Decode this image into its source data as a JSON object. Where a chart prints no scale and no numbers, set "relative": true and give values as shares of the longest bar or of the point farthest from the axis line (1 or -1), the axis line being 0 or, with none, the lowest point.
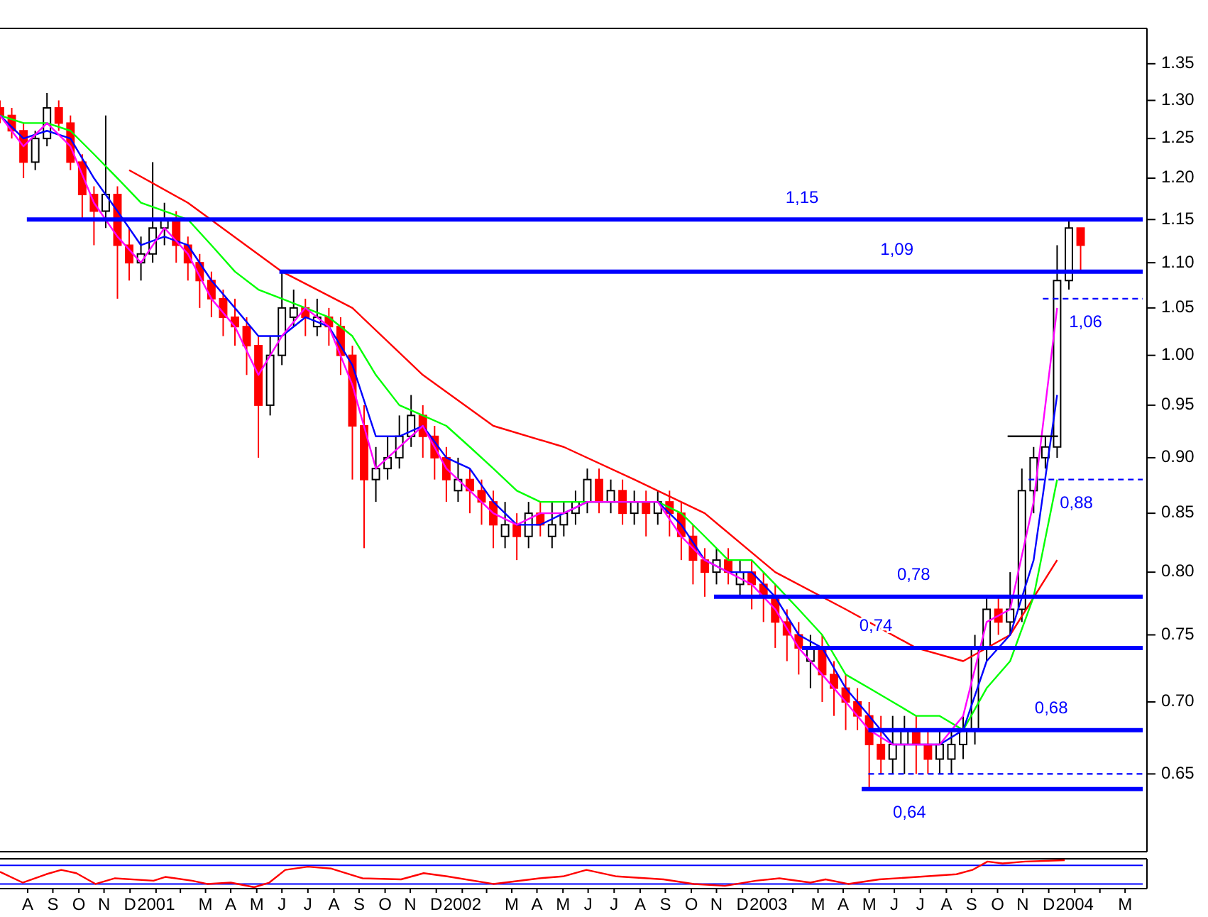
{
  "chart_data": [
    {
      "type": "candlestick",
      "log": true,
      "ylim": [
        0.6,
        1.4
      ],
      "xlim": [
        "2000-07-14",
        "2004-04-06"
      ],
      "tick_labels": "y",
      "yticks": [
        {
          "value": 0.65,
          "label": "0.65"
        },
        {
          "value": 0.7,
          "label": "0.70"
        },
        {
          "value": 0.75,
          "label": "0.75"
        },
        {
          "value": 0.8,
          "label": "0.80"
        },
        {
          "value": 0.85,
          "label": "0.85"
        },
        {
          "value": 0.9,
          "label": "0.90"
        },
        {
          "value": 0.95,
          "label": "0.95"
        },
        {
          "value": 1,
          "label": "1.00"
        },
        {
          "value": 1.05,
          "label": "1.05"
        },
        {
          "value": 1.1,
          "label": "1.10"
        },
        {
          "value": 1.15,
          "label": "1.15"
        },
        {
          "value": 1.2,
          "label": "1.20"
        },
        {
          "value": 1.25,
          "label": "1.25"
        },
        {
          "value": 1.3,
          "label": "1.30"
        },
        {
          "value": 1.35,
          "label": "1.35"
        }
      ],
      "x": [
        "2000-07-14",
        "2000-07-28",
        "2000-08-11",
        "2000-08-25",
        "2000-09-08",
        "2000-09-22",
        "2000-10-06",
        "2000-10-20",
        "2000-11-03",
        "2000-11-17",
        "2000-12-01",
        "2000-12-15",
        "2000-12-29",
        "2001-01-12",
        "2001-01-26",
        "2001-02-09",
        "2001-02-23",
        "2001-03-09",
        "2001-03-23",
        "2001-04-06",
        "2001-04-20",
        "2001-05-04",
        "2001-05-18",
        "2001-06-01",
        "2001-06-15",
        "2001-06-29",
        "2001-07-13",
        "2001-07-27",
        "2001-08-10",
        "2001-08-24",
        "2001-09-07",
        "2001-09-21",
        "2001-10-05",
        "2001-10-19",
        "2001-11-02",
        "2001-11-16",
        "2001-11-30",
        "2001-12-14",
        "2001-12-28",
        "2002-01-11",
        "2002-01-25",
        "2002-02-08",
        "2002-02-22",
        "2002-03-08",
        "2002-03-22",
        "2002-04-05",
        "2002-04-19",
        "2002-05-03",
        "2002-05-17",
        "2002-05-31",
        "2002-06-14",
        "2002-06-28",
        "2002-07-12",
        "2002-07-26",
        "2002-08-09",
        "2002-08-23",
        "2002-09-06",
        "2002-09-20",
        "2002-10-04",
        "2002-10-18",
        "2002-11-01",
        "2002-11-15",
        "2002-11-29",
        "2002-12-13",
        "2002-12-27",
        "2003-01-10",
        "2003-01-24",
        "2003-02-07",
        "2003-02-21",
        "2003-03-07",
        "2003-03-21",
        "2003-04-04",
        "2003-04-18",
        "2003-05-02",
        "2003-05-16",
        "2003-05-30",
        "2003-06-13",
        "2003-06-27",
        "2003-07-11",
        "2003-07-25",
        "2003-08-08",
        "2003-08-22",
        "2003-09-05",
        "2003-09-19",
        "2003-10-03",
        "2003-10-17",
        "2003-10-31",
        "2003-11-14",
        "2003-11-28",
        "2003-12-12",
        "2003-12-26",
        "2004-01-09",
        "2004-01-23"
      ],
      "ohlc": [
        [
          1.29,
          1.3,
          1.27,
          1.28
        ],
        [
          1.28,
          1.29,
          1.25,
          1.26
        ],
        [
          1.26,
          1.27,
          1.2,
          1.22
        ],
        [
          1.22,
          1.26,
          1.21,
          1.25
        ],
        [
          1.25,
          1.31,
          1.24,
          1.29
        ],
        [
          1.29,
          1.3,
          1.26,
          1.27
        ],
        [
          1.27,
          1.28,
          1.21,
          1.22
        ],
        [
          1.22,
          1.23,
          1.15,
          1.18
        ],
        [
          1.18,
          1.19,
          1.12,
          1.16
        ],
        [
          1.16,
          1.28,
          1.14,
          1.18
        ],
        [
          1.18,
          1.19,
          1.06,
          1.12
        ],
        [
          1.12,
          1.14,
          1.08,
          1.1
        ],
        [
          1.1,
          1.13,
          1.08,
          1.11
        ],
        [
          1.11,
          1.22,
          1.1,
          1.14
        ],
        [
          1.14,
          1.17,
          1.12,
          1.15
        ],
        [
          1.15,
          1.16,
          1.1,
          1.12
        ],
        [
          1.12,
          1.13,
          1.08,
          1.1
        ],
        [
          1.1,
          1.11,
          1.05,
          1.08
        ],
        [
          1.08,
          1.09,
          1.04,
          1.06
        ],
        [
          1.06,
          1.07,
          1.02,
          1.04
        ],
        [
          1.04,
          1.06,
          1.01,
          1.03
        ],
        [
          1.03,
          1.04,
          0.98,
          1.01
        ],
        [
          1.01,
          1.02,
          0.9,
          0.95
        ],
        [
          0.95,
          1.02,
          0.94,
          1.0
        ],
        [
          1.0,
          1.09,
          0.99,
          1.05
        ],
        [
          1.04,
          1.07,
          1.03,
          1.05
        ],
        [
          1.05,
          1.06,
          1.02,
          1.04
        ],
        [
          1.03,
          1.06,
          1.02,
          1.04
        ],
        [
          1.04,
          1.05,
          1.01,
          1.03
        ],
        [
          1.03,
          1.04,
          0.98,
          1.0
        ],
        [
          1.0,
          1.01,
          0.88,
          0.93
        ],
        [
          0.93,
          0.95,
          0.82,
          0.88
        ],
        [
          0.88,
          0.91,
          0.86,
          0.89
        ],
        [
          0.89,
          0.92,
          0.88,
          0.9
        ],
        [
          0.9,
          0.94,
          0.89,
          0.92
        ],
        [
          0.92,
          0.96,
          0.91,
          0.94
        ],
        [
          0.94,
          0.95,
          0.9,
          0.92
        ],
        [
          0.92,
          0.93,
          0.88,
          0.9
        ],
        [
          0.9,
          0.91,
          0.86,
          0.88
        ],
        [
          0.87,
          0.9,
          0.86,
          0.88
        ],
        [
          0.88,
          0.89,
          0.85,
          0.87
        ],
        [
          0.87,
          0.88,
          0.84,
          0.86
        ],
        [
          0.86,
          0.87,
          0.82,
          0.84
        ],
        [
          0.83,
          0.86,
          0.82,
          0.84
        ],
        [
          0.84,
          0.85,
          0.81,
          0.83
        ],
        [
          0.83,
          0.86,
          0.82,
          0.85
        ],
        [
          0.85,
          0.86,
          0.83,
          0.84
        ],
        [
          0.83,
          0.86,
          0.82,
          0.84
        ],
        [
          0.84,
          0.86,
          0.83,
          0.85
        ],
        [
          0.85,
          0.87,
          0.84,
          0.86
        ],
        [
          0.86,
          0.89,
          0.85,
          0.88
        ],
        [
          0.88,
          0.89,
          0.85,
          0.86
        ],
        [
          0.86,
          0.88,
          0.85,
          0.87
        ],
        [
          0.87,
          0.88,
          0.84,
          0.85
        ],
        [
          0.85,
          0.87,
          0.84,
          0.86
        ],
        [
          0.86,
          0.87,
          0.83,
          0.85
        ],
        [
          0.85,
          0.87,
          0.84,
          0.86
        ],
        [
          0.86,
          0.87,
          0.83,
          0.85
        ],
        [
          0.85,
          0.86,
          0.81,
          0.83
        ],
        [
          0.83,
          0.84,
          0.79,
          0.81
        ],
        [
          0.81,
          0.82,
          0.78,
          0.8
        ],
        [
          0.8,
          0.82,
          0.79,
          0.81
        ],
        [
          0.81,
          0.82,
          0.79,
          0.8
        ],
        [
          0.79,
          0.81,
          0.78,
          0.8
        ],
        [
          0.8,
          0.81,
          0.77,
          0.79
        ],
        [
          0.79,
          0.8,
          0.76,
          0.78
        ],
        [
          0.78,
          0.79,
          0.74,
          0.76
        ],
        [
          0.76,
          0.77,
          0.73,
          0.75
        ],
        [
          0.75,
          0.76,
          0.72,
          0.74
        ],
        [
          0.73,
          0.75,
          0.71,
          0.74
        ],
        [
          0.74,
          0.75,
          0.7,
          0.72
        ],
        [
          0.72,
          0.73,
          0.69,
          0.71
        ],
        [
          0.71,
          0.72,
          0.68,
          0.7
        ],
        [
          0.7,
          0.71,
          0.68,
          0.69
        ],
        [
          0.69,
          0.7,
          0.64,
          0.67
        ],
        [
          0.67,
          0.69,
          0.65,
          0.66
        ],
        [
          0.66,
          0.69,
          0.65,
          0.67
        ],
        [
          0.67,
          0.69,
          0.65,
          0.68
        ],
        [
          0.68,
          0.69,
          0.65,
          0.67
        ],
        [
          0.67,
          0.68,
          0.65,
          0.66
        ],
        [
          0.66,
          0.68,
          0.65,
          0.67
        ],
        [
          0.66,
          0.68,
          0.65,
          0.67
        ],
        [
          0.67,
          0.69,
          0.66,
          0.68
        ],
        [
          0.68,
          0.75,
          0.67,
          0.74
        ],
        [
          0.74,
          0.78,
          0.73,
          0.77
        ],
        [
          0.77,
          0.78,
          0.75,
          0.76
        ],
        [
          0.76,
          0.8,
          0.75,
          0.77
        ],
        [
          0.77,
          0.89,
          0.76,
          0.87
        ],
        [
          0.87,
          0.91,
          0.85,
          0.9
        ],
        [
          0.9,
          0.92,
          0.89,
          0.91
        ],
        [
          0.91,
          1.12,
          0.9,
          1.08
        ],
        [
          1.08,
          1.15,
          1.07,
          1.14
        ],
        [
          1.14,
          1.14,
          1.09,
          1.12
        ]
      ],
      "colors": [
        "#ff0000",
        "#ff0000",
        "#ff0000",
        "#000000",
        "#000000",
        "#ff0000",
        "#ff0000",
        "#ff0000",
        "#ff0000",
        "#000000",
        "#ff0000",
        "#ff0000",
        "#000000",
        "#000000",
        "#000000",
        "#ff0000",
        "#ff0000",
        "#ff0000",
        "#ff0000",
        "#ff0000",
        "#ff0000",
        "#ff0000",
        "#ff0000",
        "#000000",
        "#000000",
        "#000000",
        "#ff0000",
        "#000000",
        "#ff0000",
        "#ff0000",
        "#ff0000",
        "#ff0000",
        "#000000",
        "#000000",
        "#000000",
        "#000000",
        "#ff0000",
        "#ff0000",
        "#ff0000",
        "#000000",
        "#ff0000",
        "#ff0000",
        "#ff0000",
        "#000000",
        "#ff0000",
        "#000000",
        "#ff0000",
        "#000000",
        "#000000",
        "#000000",
        "#000000",
        "#ff0000",
        "#000000",
        "#ff0000",
        "#000000",
        "#ff0000",
        "#000000",
        "#ff0000",
        "#ff0000",
        "#ff0000",
        "#ff0000",
        "#000000",
        "#ff0000",
        "#000000",
        "#ff0000",
        "#ff0000",
        "#ff0000",
        "#ff0000",
        "#ff0000",
        "#000000",
        "#ff0000",
        "#ff0000",
        "#ff0000",
        "#ff0000",
        "#ff0000",
        "#ff0000",
        "#000000",
        "#000000",
        "#ff0000",
        "#ff0000",
        "#000000",
        "#000000",
        "#000000",
        "#000000",
        "#000000",
        "#ff0000",
        "#000000",
        "#000000",
        "#000000",
        "#000000",
        "#000000",
        "#000000",
        "#ff0000"
      ],
      "series": [
        {
          "type": "line",
          "color": "#ff0000",
          "x": [
            "2000-12-15",
            "2001-02-23",
            "2001-06-15",
            "2001-09-07",
            "2001-11-30",
            "2002-02-22",
            "2002-05-17",
            "2002-08-09",
            "2002-11-01",
            "2003-01-24",
            "2003-04-18",
            "2003-07-11",
            "2003-09-05",
            "2003-10-31",
            "2003-12-26"
          ],
          "values": [
            1.21,
            1.17,
            1.09,
            1.05,
            0.98,
            0.93,
            0.91,
            0.88,
            0.85,
            0.8,
            0.77,
            0.74,
            0.73,
            0.75,
            0.81
          ]
        },
        {
          "type": "line",
          "color": "#00ff00",
          "x": [
            "2000-07-14",
            "2000-08-11",
            "2000-09-08",
            "2000-10-06",
            "2000-11-03",
            "2000-12-01",
            "2000-12-29",
            "2001-01-26",
            "2001-02-23",
            "2001-03-23",
            "2001-04-20",
            "2001-05-18",
            "2001-06-15",
            "2001-07-13",
            "2001-08-10",
            "2001-09-07",
            "2001-10-05",
            "2001-11-02",
            "2001-11-30",
            "2001-12-28",
            "2002-01-25",
            "2002-02-22",
            "2002-03-22",
            "2002-04-19",
            "2002-05-17",
            "2002-06-14",
            "2002-07-12",
            "2002-08-09",
            "2002-09-06",
            "2002-10-04",
            "2002-11-01",
            "2002-11-29",
            "2002-12-27",
            "2003-01-24",
            "2003-02-21",
            "2003-03-21",
            "2003-04-18",
            "2003-05-16",
            "2003-06-13",
            "2003-07-11",
            "2003-08-08",
            "2003-09-05",
            "2003-10-03",
            "2003-10-31",
            "2003-11-28",
            "2003-12-26"
          ],
          "values": [
            1.28,
            1.27,
            1.27,
            1.26,
            1.23,
            1.2,
            1.17,
            1.16,
            1.15,
            1.12,
            1.09,
            1.07,
            1.06,
            1.05,
            1.04,
            1.02,
            0.98,
            0.95,
            0.94,
            0.93,
            0.91,
            0.89,
            0.87,
            0.86,
            0.86,
            0.86,
            0.86,
            0.86,
            0.86,
            0.85,
            0.83,
            0.81,
            0.81,
            0.79,
            0.77,
            0.75,
            0.72,
            0.71,
            0.7,
            0.69,
            0.69,
            0.68,
            0.71,
            0.73,
            0.78,
            0.88
          ]
        },
        {
          "type": "line",
          "color": "#0000ff",
          "x": [
            "2000-07-14",
            "2000-08-11",
            "2000-09-08",
            "2000-10-06",
            "2000-11-03",
            "2000-12-01",
            "2000-12-29",
            "2001-01-26",
            "2001-02-23",
            "2001-03-23",
            "2001-04-20",
            "2001-05-18",
            "2001-06-15",
            "2001-07-13",
            "2001-08-10",
            "2001-09-07",
            "2001-10-05",
            "2001-11-02",
            "2001-11-30",
            "2001-12-28",
            "2002-01-25",
            "2002-02-22",
            "2002-03-22",
            "2002-04-19",
            "2002-05-17",
            "2002-06-14",
            "2002-07-12",
            "2002-08-09",
            "2002-09-06",
            "2002-10-04",
            "2002-11-01",
            "2002-11-29",
            "2002-12-27",
            "2003-01-24",
            "2003-02-21",
            "2003-03-21",
            "2003-04-18",
            "2003-05-16",
            "2003-06-13",
            "2003-07-11",
            "2003-08-08",
            "2003-09-05",
            "2003-10-03",
            "2003-10-31",
            "2003-11-28",
            "2003-12-26"
          ],
          "values": [
            1.28,
            1.25,
            1.26,
            1.25,
            1.2,
            1.16,
            1.12,
            1.13,
            1.12,
            1.08,
            1.05,
            1.02,
            1.02,
            1.04,
            1.03,
            0.99,
            0.92,
            0.92,
            0.93,
            0.9,
            0.89,
            0.86,
            0.84,
            0.84,
            0.85,
            0.86,
            0.86,
            0.86,
            0.86,
            0.84,
            0.81,
            0.8,
            0.8,
            0.78,
            0.75,
            0.74,
            0.71,
            0.69,
            0.67,
            0.67,
            0.67,
            0.68,
            0.73,
            0.75,
            0.81,
            0.96
          ]
        },
        {
          "type": "line",
          "color": "#ff00ff",
          "x": [
            "2000-07-14",
            "2000-08-11",
            "2000-09-08",
            "2000-10-06",
            "2000-11-03",
            "2000-12-01",
            "2000-12-29",
            "2001-01-26",
            "2001-02-23",
            "2001-03-23",
            "2001-04-20",
            "2001-05-18",
            "2001-06-15",
            "2001-07-13",
            "2001-08-10",
            "2001-09-07",
            "2001-10-05",
            "2001-11-02",
            "2001-11-30",
            "2001-12-28",
            "2002-01-25",
            "2002-02-22",
            "2002-03-22",
            "2002-04-19",
            "2002-05-17",
            "2002-06-14",
            "2002-07-12",
            "2002-08-09",
            "2002-09-06",
            "2002-10-04",
            "2002-11-01",
            "2002-11-29",
            "2002-12-27",
            "2003-01-24",
            "2003-02-21",
            "2003-03-21",
            "2003-04-18",
            "2003-05-16",
            "2003-06-13",
            "2003-07-11",
            "2003-08-08",
            "2003-09-05",
            "2003-10-03",
            "2003-10-31",
            "2003-11-28",
            "2003-12-26"
          ],
          "values": [
            1.28,
            1.24,
            1.27,
            1.24,
            1.17,
            1.13,
            1.1,
            1.14,
            1.11,
            1.06,
            1.03,
            0.98,
            1.02,
            1.05,
            1.03,
            0.97,
            0.89,
            0.91,
            0.93,
            0.89,
            0.87,
            0.85,
            0.84,
            0.85,
            0.85,
            0.86,
            0.86,
            0.86,
            0.86,
            0.83,
            0.81,
            0.8,
            0.79,
            0.77,
            0.74,
            0.72,
            0.7,
            0.68,
            0.67,
            0.67,
            0.67,
            0.69,
            0.76,
            0.77,
            0.86,
            1.05
          ]
        },
        {
          "type": "line",
          "color": "#0000ff",
          "line_style": "solid",
          "x": [
            "2000-08-15",
            "2004-04-06"
          ],
          "values": [
            1.15,
            1.15
          ]
        },
        {
          "type": "line",
          "color": "#0000ff",
          "line_style": "solid",
          "x": [
            "2001-06-12",
            "2004-04-06"
          ],
          "values": [
            1.09,
            1.09
          ]
        },
        {
          "type": "line",
          "color": "#0000ff",
          "line_style": "dashed",
          "x": [
            "2003-12-09",
            "2004-04-06"
          ],
          "values": [
            1.06,
            1.06
          ]
        },
        {
          "type": "line",
          "color": "#0000ff",
          "line_style": "dashed",
          "x": [
            "2003-11-22",
            "2004-04-06"
          ],
          "values": [
            0.88,
            0.88
          ]
        },
        {
          "type": "line",
          "color": "#0000ff",
          "line_style": "solid",
          "x": [
            "2002-11-12",
            "2004-04-06"
          ],
          "values": [
            0.78,
            0.78
          ]
        },
        {
          "type": "line",
          "color": "#0000ff",
          "line_style": "solid",
          "x": [
            "2003-02-25",
            "2004-04-06"
          ],
          "values": [
            0.74,
            0.74
          ]
        },
        {
          "type": "line",
          "color": "#0000ff",
          "line_style": "solid",
          "x": [
            "2003-05-15",
            "2004-04-06"
          ],
          "values": [
            0.68,
            0.68
          ]
        },
        {
          "type": "line",
          "color": "#0000ff",
          "line_style": "dashed",
          "x": [
            "2003-05-15",
            "2004-04-06"
          ],
          "values": [
            0.65,
            0.65
          ]
        },
        {
          "type": "line",
          "color": "#0000ff",
          "line_style": "solid",
          "x": [
            "2003-05-07",
            "2004-04-06"
          ],
          "values": [
            0.64,
            0.64
          ]
        },
        {
          "type": "line",
          "color": "#000000",
          "line_style": "solid",
          "x": [
            "2003-10-28",
            "2003-12-27"
          ],
          "values": [
            0.92,
            0.92
          ]
        }
      ],
      "annotations": [
        {
          "text": "1,15",
          "x": "2003-02-25",
          "y": 1.15
        },
        {
          "text": "1,09",
          "x": "2003-06-18",
          "y": 1.09
        },
        {
          "text": "1,06",
          "x": "2004-01-29",
          "y": 1.06
        },
        {
          "text": "0,88",
          "x": "2004-01-18",
          "y": 0.88
        },
        {
          "text": "0,78",
          "x": "2003-07-08",
          "y": 0.78
        },
        {
          "text": "0,74",
          "x": "2003-05-24",
          "y": 0.74
        },
        {
          "text": "0,68",
          "x": "2003-12-19",
          "y": 0.68
        },
        {
          "text": "0,64",
          "x": "2003-07-03",
          "y": 0.64
        }
      ]
    },
    {
      "type": "line",
      "relative": true,
      "xlim": [
        "2000-07-14",
        "2004-04-06"
      ],
      "tick_labels": "x",
      "xticks": [
        {
          "value": "2000-08-16",
          "label": "A"
        },
        {
          "value": "2000-09-15",
          "label": "S"
        },
        {
          "value": "2000-10-16",
          "label": "O"
        },
        {
          "value": "2000-11-15",
          "label": "N"
        },
        {
          "value": "2000-12-16",
          "label": "D"
        },
        {
          "value": "2001-01-16",
          "label": "2001"
        },
        {
          "value": "2001-02-14",
          "label": null
        },
        {
          "value": "2001-03-16",
          "label": "M"
        },
        {
          "value": "2001-04-15",
          "label": "A"
        },
        {
          "value": "2001-05-16",
          "label": "M"
        },
        {
          "value": "2001-06-15",
          "label": "J"
        },
        {
          "value": "2001-07-16",
          "label": "J"
        },
        {
          "value": "2001-08-16",
          "label": "A"
        },
        {
          "value": "2001-09-15",
          "label": "S"
        },
        {
          "value": "2001-10-16",
          "label": "O"
        },
        {
          "value": "2001-11-15",
          "label": "N"
        },
        {
          "value": "2001-12-16",
          "label": "D"
        },
        {
          "value": "2002-01-16",
          "label": "2002"
        },
        {
          "value": "2002-02-14",
          "label": null
        },
        {
          "value": "2002-03-16",
          "label": "M"
        },
        {
          "value": "2002-04-15",
          "label": "A"
        },
        {
          "value": "2002-05-16",
          "label": "M"
        },
        {
          "value": "2002-06-15",
          "label": "J"
        },
        {
          "value": "2002-07-16",
          "label": "J"
        },
        {
          "value": "2002-08-16",
          "label": "A"
        },
        {
          "value": "2002-09-15",
          "label": "S"
        },
        {
          "value": "2002-10-16",
          "label": "O"
        },
        {
          "value": "2002-11-15",
          "label": "N"
        },
        {
          "value": "2002-12-16",
          "label": "D"
        },
        {
          "value": "2003-01-16",
          "label": "2003"
        },
        {
          "value": "2003-02-14",
          "label": null
        },
        {
          "value": "2003-03-16",
          "label": "M"
        },
        {
          "value": "2003-04-15",
          "label": "A"
        },
        {
          "value": "2003-05-16",
          "label": "M"
        },
        {
          "value": "2003-06-15",
          "label": "J"
        },
        {
          "value": "2003-07-16",
          "label": "J"
        },
        {
          "value": "2003-08-16",
          "label": "A"
        },
        {
          "value": "2003-09-15",
          "label": "S"
        },
        {
          "value": "2003-10-16",
          "label": "O"
        },
        {
          "value": "2003-11-15",
          "label": "N"
        },
        {
          "value": "2003-12-16",
          "label": "D"
        },
        {
          "value": "2004-01-16",
          "label": "2004"
        },
        {
          "value": "2004-02-15",
          "label": null
        },
        {
          "value": "2004-03-16",
          "label": "M"
        }
      ],
      "ref_lines": [
        {
          "axis": "y",
          "value": 0.81,
          "color": "#0000ff"
        },
        {
          "axis": "y",
          "value": 0.12,
          "color": "#0000ff"
        }
      ],
      "series": [
        {
          "type": "line",
          "color": "#ff0000",
          "x": [
            "2000-07-14",
            "2000-08-10",
            "2000-09-07",
            "2000-09-25",
            "2000-10-13",
            "2000-11-05",
            "2000-11-28",
            "2001-01-13",
            "2001-01-27",
            "2001-02-28",
            "2001-03-18",
            "2001-04-15",
            "2001-05-13",
            "2001-05-31",
            "2001-06-19",
            "2001-07-16",
            "2001-08-13",
            "2001-09-19",
            "2001-11-04",
            "2001-12-01",
            "2001-12-29",
            "2002-02-22",
            "2002-04-18",
            "2002-05-16",
            "2002-06-13",
            "2002-07-19",
            "2002-09-13",
            "2002-10-19",
            "2002-11-25",
            "2003-01-01",
            "2003-01-29",
            "2003-03-07",
            "2003-03-25",
            "2003-04-21",
            "2003-05-28",
            "2003-07-22",
            "2003-08-28",
            "2003-09-16",
            "2003-10-04",
            "2003-10-22",
            "2003-11-18",
            "2004-01-04"
          ],
          "values": [
            0.57,
            0.17,
            0.48,
            0.64,
            0.52,
            0.12,
            0.33,
            0.24,
            0.38,
            0.24,
            0.12,
            0.17,
            0,
            0.17,
            0.64,
            0.76,
            0.69,
            0.33,
            0.29,
            0.52,
            0.4,
            0.12,
            0.33,
            0.4,
            0.64,
            0.4,
            0.29,
            0.12,
            0.05,
            0.24,
            0.33,
            0.17,
            0.29,
            0.12,
            0.29,
            0.4,
            0.48,
            0.64,
            0.95,
            0.88,
            0.95,
            1
          ]
        }
      ]
    }
  ]
}
